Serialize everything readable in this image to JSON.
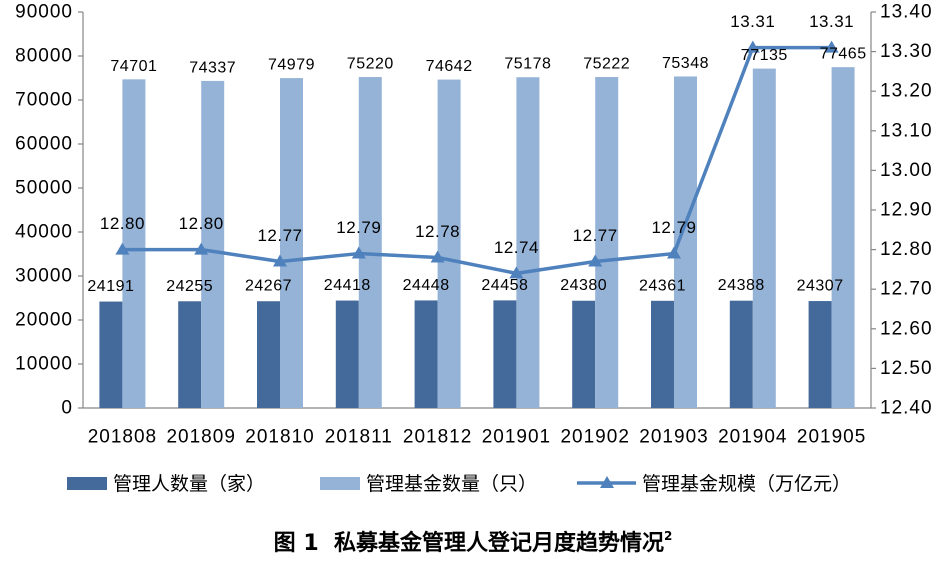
{
  "chart_data": {
    "type": "bar",
    "categories": [
      "201808",
      "201809",
      "201810",
      "201811",
      "201812",
      "201901",
      "201902",
      "201903",
      "201904",
      "201905"
    ],
    "series": [
      {
        "name": "管理人数量（家）",
        "type": "bar",
        "axis": "left",
        "color": "#44699B",
        "values": [
          24191,
          24255,
          24267,
          24418,
          24448,
          24458,
          24380,
          24361,
          24388,
          24307
        ]
      },
      {
        "name": "管理基金数量（只）",
        "type": "bar",
        "axis": "left",
        "color": "#95B3D7",
        "values": [
          74701,
          74337,
          74979,
          75220,
          74642,
          75178,
          75222,
          75348,
          77135,
          77465
        ]
      },
      {
        "name": "管理基金规模（万亿元）",
        "type": "line",
        "axis": "right",
        "marker": "triangle",
        "color": "#4F81BD",
        "values": [
          12.8,
          12.8,
          12.77,
          12.79,
          12.78,
          12.74,
          12.77,
          12.79,
          13.31,
          13.31
        ],
        "value_labels": [
          "12.80",
          "12.80",
          "12.77",
          "12.79",
          "12.78",
          "12.74",
          "12.77",
          "12.79",
          "13.31",
          "13.31"
        ]
      }
    ],
    "y_left": {
      "range": [
        0,
        90000
      ],
      "ticks": [
        0,
        10000,
        20000,
        30000,
        40000,
        50000,
        60000,
        70000,
        80000,
        90000
      ]
    },
    "y_right": {
      "range": [
        12.4,
        13.4
      ],
      "ticks": [
        "12.40",
        "12.50",
        "12.60",
        "12.70",
        "12.80",
        "12.90",
        "13.00",
        "13.10",
        "13.20",
        "13.30",
        "13.40"
      ]
    },
    "title": "图 1  私募基金管理人登记月度趋势情况",
    "title_superscript": "2",
    "legend": "bottom",
    "grid": false
  }
}
